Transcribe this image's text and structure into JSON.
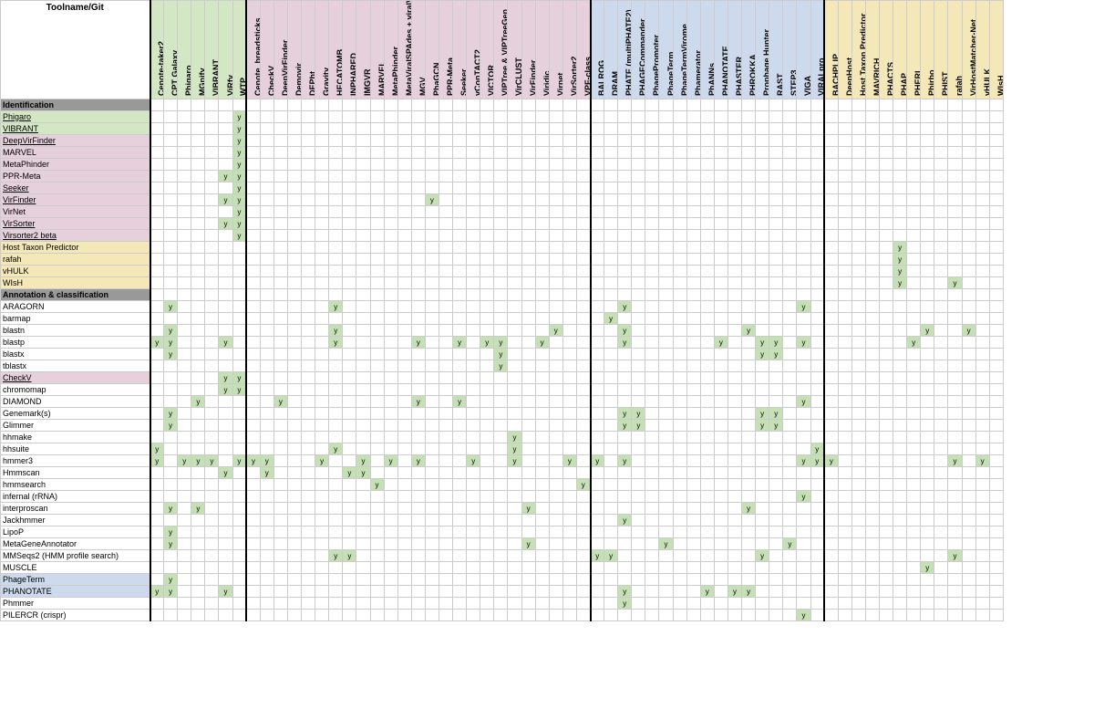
{
  "corner": "Toolname/Git",
  "colors": {
    "green": "#d4e7c5",
    "pink": "#e5d0dc",
    "yellow": "#f5e8b8",
    "blue": "#cdd9ec",
    "grey": "#999999",
    "y": "#c5e0b4"
  },
  "colGroups": [
    {
      "color": "#d4e7c5",
      "cols": [
        "Cenote-taker2",
        "CPT Galaxy",
        "Phigaro",
        "MGnify",
        "VIBRANT",
        "ViRfy",
        "WTP"
      ]
    },
    {
      "color": "#e5d0dc",
      "cols": [
        "Cenote_breadsticks",
        "CheckV",
        "DeepVirFinder",
        "Demovir",
        "DEPht",
        "Gravity",
        "HECATOMB",
        "INPHARED",
        "IMGVR",
        "MARVEL",
        "MetaPhinder",
        "MetaViralSPAdes + viralVerify + viralComplete",
        "MGV",
        "PhaGCN",
        "PPR-Meta",
        "Seeker",
        "vConTACT2",
        "VICTOR",
        "VIPTree & VIPTreeGen",
        "VirCLUST",
        "VirFinder",
        "Viridic",
        "Virnet",
        "VirSorter2",
        "VPF-class"
      ]
    },
    {
      "color": "#cdd9ec",
      "cols": [
        "BALROG",
        "DRAM",
        "PHATE (multiPHATE2)",
        "PHAGECommander",
        "PhagePromoter",
        "PhageTerm",
        "PhageTermVirome",
        "Phamerator",
        "PhANNs",
        "PHANOTATE",
        "PHASTER",
        "PHROKKA",
        "Prophage Hunter",
        "RAST",
        "STEP3",
        "VIGA",
        "VIRALpro"
      ]
    },
    {
      "color": "#f5e8b8",
      "cols": [
        "BACHPLIP",
        "DeepHost",
        "Host Taxon Predictor",
        "MAVRICH",
        "PHACTS",
        "PHAP",
        "PHERI",
        "Phirbo",
        "PHIST",
        "rafah",
        "VirHostMatcher-Net",
        "vHULK",
        "WIsH"
      ]
    }
  ],
  "sections": [
    {
      "title": "Identification",
      "rows": [
        {
          "label": "Phigaro",
          "bg": "#d4e7c5",
          "u": 1,
          "y": [
            6
          ]
        },
        {
          "label": "VIBRANT",
          "bg": "#d4e7c5",
          "u": 1,
          "y": [
            6
          ]
        },
        {
          "label": "DeepVirFinder",
          "bg": "#e5d0dc",
          "u": 1,
          "y": [
            6
          ]
        },
        {
          "label": "MARVEL",
          "bg": "#e5d0dc",
          "y": [
            6
          ]
        },
        {
          "label": "MetaPhinder",
          "bg": "#e5d0dc",
          "y": [
            6
          ]
        },
        {
          "label": "PPR-Meta",
          "bg": "#e5d0dc",
          "y": [
            5,
            6
          ]
        },
        {
          "label": "Seeker",
          "bg": "#e5d0dc",
          "u": 1,
          "y": [
            6
          ]
        },
        {
          "label": "VirFinder",
          "bg": "#e5d0dc",
          "u": 1,
          "y": [
            5,
            6,
            20
          ]
        },
        {
          "label": "VirNet",
          "bg": "#e5d0dc",
          "y": [
            6
          ]
        },
        {
          "label": "VirSorter",
          "bg": "#e5d0dc",
          "u": 1,
          "y": [
            5,
            6
          ]
        },
        {
          "label": "Virsorter2 beta",
          "bg": "#e5d0dc",
          "u": 1,
          "y": [
            6
          ]
        },
        {
          "label": "Host Taxon Predictor",
          "bg": "#f5e8b8",
          "y": [
            54
          ]
        },
        {
          "label": "rafah",
          "bg": "#f5e8b8",
          "y": [
            54
          ]
        },
        {
          "label": "vHULK",
          "bg": "#f5e8b8",
          "y": [
            54
          ]
        },
        {
          "label": "WIsH",
          "bg": "#f5e8b8",
          "y": [
            54,
            58
          ]
        }
      ]
    },
    {
      "title": "Annotation & classification",
      "rows": [
        {
          "label": "ARAGORN",
          "y": [
            1,
            13,
            34,
            47
          ]
        },
        {
          "label": "barmap",
          "y": [
            33
          ]
        },
        {
          "label": "blastn",
          "y": [
            1,
            13,
            29,
            34,
            43,
            56,
            59
          ]
        },
        {
          "label": "blastp",
          "y": [
            0,
            1,
            5,
            13,
            19,
            22,
            24,
            25,
            28,
            34,
            41,
            44,
            45,
            47,
            55
          ]
        },
        {
          "label": "blastx",
          "y": [
            1,
            25,
            44,
            45
          ]
        },
        {
          "label": "tblastx",
          "y": [
            25
          ]
        },
        {
          "label": "CheckV",
          "bg": "#e5d0dc",
          "u": 1,
          "y": [
            5,
            6
          ]
        },
        {
          "label": "chromomap",
          "y": [
            5,
            6
          ]
        },
        {
          "label": "DIAMOND",
          "y": [
            3,
            9,
            19,
            22,
            47
          ]
        },
        {
          "label": "Genemark(s)",
          "y": [
            1,
            34,
            35,
            44,
            45
          ]
        },
        {
          "label": "Glimmer",
          "y": [
            1,
            34,
            35,
            44,
            45
          ]
        },
        {
          "label": "hhmake",
          "y": [
            26
          ]
        },
        {
          "label": "hhsuite",
          "y": [
            0,
            13,
            26,
            48
          ]
        },
        {
          "label": "hmmer3",
          "y": [
            0,
            2,
            3,
            4,
            6,
            7,
            8,
            12,
            15,
            17,
            19,
            23,
            26,
            30,
            32,
            34,
            47,
            48,
            49,
            58,
            60
          ]
        },
        {
          "label": "Hmmscan",
          "y": [
            5,
            8,
            14,
            15
          ]
        },
        {
          "label": "hmmsearch",
          "y": [
            16,
            31
          ]
        },
        {
          "label": "infernal (rRNA)",
          "y": [
            47
          ]
        },
        {
          "label": "interproscan",
          "y": [
            1,
            3,
            27,
            43
          ]
        },
        {
          "label": "Jackhmmer",
          "y": [
            34
          ]
        },
        {
          "label": "LipoP",
          "y": [
            1
          ]
        },
        {
          "label": "MetaGeneAnnotator",
          "y": [
            1,
            27,
            37,
            46
          ]
        },
        {
          "label": "MMSeqs2 (HMM profile search)",
          "y": [
            13,
            14,
            32,
            33,
            44,
            58
          ]
        },
        {
          "label": "MUSCLE",
          "y": [
            56
          ]
        },
        {
          "label": "PhageTerm",
          "bg": "#cdd9ec",
          "y": [
            1
          ]
        },
        {
          "label": "PHANOTATE",
          "bg": "#cdd9ec",
          "y": [
            0,
            1,
            5,
            34,
            40,
            42,
            43
          ]
        },
        {
          "label": "Phmmer",
          "y": [
            34
          ]
        },
        {
          "label": "PILERCR (crispr)",
          "y": [
            47
          ]
        }
      ]
    }
  ]
}
